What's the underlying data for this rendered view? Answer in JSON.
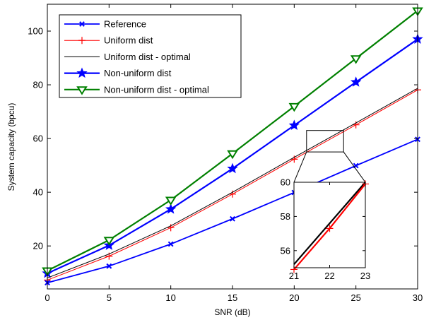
{
  "chart_data": {
    "type": "line",
    "title": "",
    "xlabel": "SNR (dB)",
    "ylabel": "System capacity (bpcu)",
    "xlim": [
      0,
      30
    ],
    "ylim": [
      4,
      110
    ],
    "xticks": [
      0,
      5,
      10,
      15,
      20,
      25,
      30
    ],
    "yticks": [
      20,
      40,
      60,
      80,
      100
    ],
    "grid": false,
    "legend_position": "top-left",
    "x": [
      0,
      5,
      10,
      15,
      20,
      25,
      30
    ],
    "series": [
      {
        "name": "Reference",
        "color": "#0000ff",
        "marker": "x",
        "values": [
          6.3,
          12.5,
          20.7,
          30.1,
          39.9,
          49.9,
          59.7
        ]
      },
      {
        "name": "Uniform dist",
        "color": "#ff0000",
        "marker": "+",
        "values": [
          7.3,
          16.2,
          26.8,
          39.3,
          52.3,
          65.1,
          78.1
        ]
      },
      {
        "name": "Uniform dist - optimal",
        "color": "#000000",
        "marker": "none",
        "values": [
          8.1,
          17.0,
          27.5,
          40.0,
          53.0,
          65.8,
          78.7
        ]
      },
      {
        "name": "Non-uniform dist",
        "color": "#0000ff",
        "marker": "star",
        "values": [
          9.8,
          20.2,
          33.7,
          48.8,
          64.9,
          81.0,
          97.0
        ]
      },
      {
        "name": "Non-uniform dist - optimal",
        "color": "#008000",
        "marker": "triangle-down",
        "values": [
          10.8,
          22.2,
          37.1,
          54.4,
          72.0,
          89.8,
          107.6
        ]
      }
    ],
    "inset": {
      "xlim": [
        21,
        23
      ],
      "ylim": [
        55,
        60
      ],
      "xticks": [
        21,
        22,
        23
      ],
      "yticks": [
        56,
        58,
        60
      ],
      "series": [
        {
          "name": "Uniform dist - optimal",
          "color": "#000000",
          "marker": "none",
          "x": [
            21,
            23
          ],
          "values": [
            55.2,
            60.0
          ]
        },
        {
          "name": "Uniform dist",
          "color": "#ff0000",
          "marker": "+",
          "x": [
            21,
            22,
            23
          ],
          "values": [
            54.9,
            57.3,
            59.9
          ]
        }
      ],
      "zoom_region": {
        "xlim": [
          21,
          24
        ],
        "ylim": [
          55,
          63
        ]
      }
    }
  }
}
